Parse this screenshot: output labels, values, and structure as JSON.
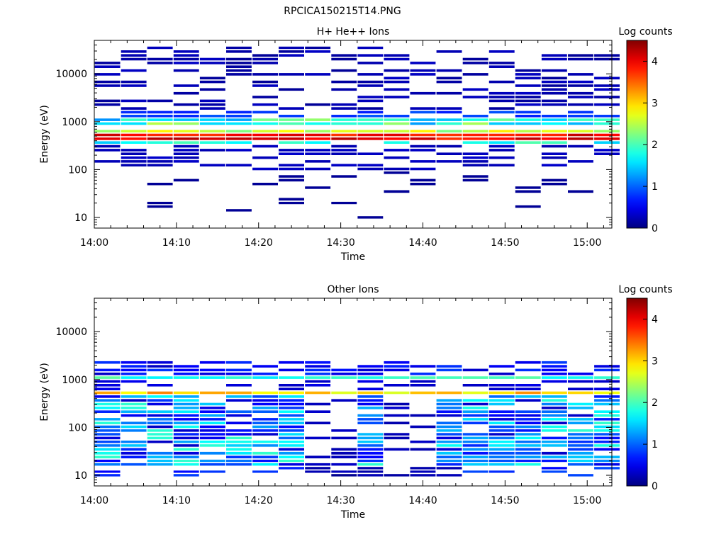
{
  "figure_title": "RPCICA150215T14.PNG",
  "chart_data": [
    {
      "type": "heatmap",
      "title": "H+ He++ Ions",
      "xlabel": "Time",
      "ylabel": "Energy (eV)",
      "x_range": [
        "14:00",
        "15:03"
      ],
      "y_scale": "log",
      "ylim": [
        6,
        50000
      ],
      "x_ticks": [
        "14:00",
        "14:10",
        "14:20",
        "14:30",
        "14:40",
        "14:50",
        "15:00"
      ],
      "y_ticks": [
        "10",
        "100",
        "1000",
        "10000"
      ],
      "colorbar": {
        "label": "Log counts",
        "range": [
          0,
          4.5
        ],
        "ticks": [
          "0",
          "1",
          "2",
          "3",
          "4"
        ]
      },
      "time_bins": [
        "14:01:36",
        "14:04:48",
        "14:08:00",
        "14:11:12",
        "14:14:24",
        "14:17:36",
        "14:20:48",
        "14:24:00",
        "14:27:12",
        "14:30:24",
        "14:33:36",
        "14:36:48",
        "14:40:00",
        "14:43:12",
        "14:46:24",
        "14:49:36",
        "14:52:48",
        "14:56:00",
        "14:59:12",
        "15:02:24"
      ],
      "energy_bins": [
        10,
        12,
        14,
        17,
        20,
        24,
        29,
        35,
        42,
        50,
        60,
        72,
        86,
        103,
        124,
        148,
        178,
        213,
        256,
        307,
        368,
        441,
        529,
        635,
        762,
        914,
        1097,
        1316,
        1579,
        1895,
        2274,
        2729,
        3275,
        3930,
        4716,
        5659,
        6791,
        8149,
        9779,
        11735,
        14082,
        16898,
        20278,
        24334,
        29201,
        35041
      ],
      "grid": false,
      "legend": "none",
      "colormap": "rainbow"
    },
    {
      "type": "heatmap",
      "title": "Other Ions",
      "xlabel": "Time",
      "ylabel": "Energy (eV)",
      "x_range": [
        "14:00",
        "15:03"
      ],
      "y_scale": "log",
      "ylim": [
        6,
        50000
      ],
      "x_ticks": [
        "14:00",
        "14:10",
        "14:20",
        "14:30",
        "14:40",
        "14:50",
        "15:00"
      ],
      "y_ticks": [
        "10",
        "100",
        "1000",
        "10000"
      ],
      "colorbar": {
        "label": "Log counts",
        "range": [
          0,
          4.5
        ],
        "ticks": [
          "0",
          "1",
          "2",
          "3",
          "4"
        ]
      },
      "time_bins": [
        "14:01:36",
        "14:04:48",
        "14:08:00",
        "14:11:12",
        "14:14:24",
        "14:17:36",
        "14:20:48",
        "14:24:00",
        "14:27:12",
        "14:30:24",
        "14:33:36",
        "14:36:48",
        "14:40:00",
        "14:43:12",
        "14:46:24",
        "14:49:36",
        "14:52:48",
        "14:56:00",
        "14:59:12",
        "15:02:24"
      ],
      "energy_bins": [
        10,
        12,
        14,
        17,
        20,
        24,
        29,
        35,
        42,
        50,
        60,
        72,
        86,
        103,
        124,
        148,
        178,
        213,
        256,
        307,
        368,
        441,
        529,
        635,
        762,
        914,
        1097,
        1316,
        1579,
        1895,
        2274,
        2729,
        3275,
        3930,
        4716,
        5659,
        6791,
        8149,
        9779,
        11735,
        14082,
        16898,
        20278,
        24334,
        29201,
        35041
      ],
      "grid": false,
      "legend": "none",
      "colormap": "rainbow"
    }
  ]
}
